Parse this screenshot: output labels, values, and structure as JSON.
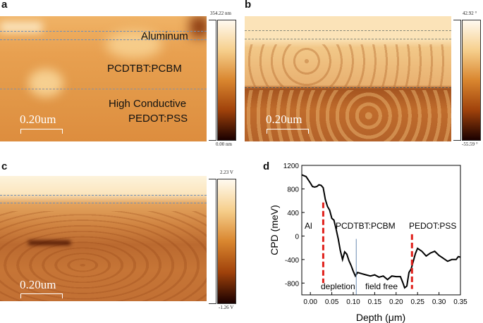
{
  "panels": {
    "a": {
      "label": "a",
      "colorbar_max": "354.22 nm",
      "colorbar_min": "0.00 nm",
      "scale_bar": "0.20um",
      "annotations": [
        "Aluminum",
        "PCDTBT:PCBM",
        "High Conductive",
        "PEDOT:PSS"
      ]
    },
    "b": {
      "label": "b",
      "colorbar_max": "42.92 °",
      "colorbar_min": "-55.59 °",
      "scale_bar": "0.20um"
    },
    "c": {
      "label": "c",
      "colorbar_max": "2.23 V",
      "colorbar_min": "-1.26 V",
      "scale_bar": "0.20um"
    },
    "d": {
      "label": "d"
    }
  },
  "colors": {
    "afm_light": "#fbe6bf",
    "afm_mid": "#d98a3a",
    "afm_dark": "#3a0a00",
    "dashed_guides": "#6f8fb8",
    "red_markers": "#e0201b",
    "blue_marker": "#6a8ab0"
  },
  "chart_data": {
    "type": "line",
    "xlabel": "Depth (μm)",
    "ylabel": "CPD (meV)",
    "xlim": [
      -0.02,
      0.35
    ],
    "ylim": [
      -1000,
      1200
    ],
    "xticks": [
      "0.00",
      "0.05",
      "0.10",
      "0.15",
      "0.20",
      "0.25",
      "0.30",
      "0.35"
    ],
    "yticks": [
      "-800",
      "-400",
      "0",
      "400",
      "800",
      "1200"
    ],
    "x": [
      -0.02,
      -0.01,
      0,
      0.005,
      0.01,
      0.015,
      0.02,
      0.025,
      0.03,
      0.035,
      0.04,
      0.045,
      0.05,
      0.055,
      0.06,
      0.065,
      0.07,
      0.075,
      0.08,
      0.085,
      0.09,
      0.095,
      0.1,
      0.105,
      0.11,
      0.12,
      0.13,
      0.14,
      0.15,
      0.16,
      0.17,
      0.18,
      0.19,
      0.2,
      0.21,
      0.215,
      0.22,
      0.225,
      0.23,
      0.235,
      0.24,
      0.245,
      0.25,
      0.26,
      0.27,
      0.28,
      0.29,
      0.3,
      0.31,
      0.32,
      0.33,
      0.34,
      0.345,
      0.35
    ],
    "y": [
      1040,
      1010,
      900,
      840,
      830,
      840,
      870,
      860,
      820,
      620,
      500,
      440,
      300,
      270,
      120,
      -50,
      -250,
      -400,
      -270,
      -310,
      -420,
      -500,
      -600,
      -680,
      -620,
      -640,
      -660,
      -680,
      -660,
      -700,
      -680,
      -740,
      -680,
      -690,
      -690,
      -780,
      -880,
      -850,
      -620,
      -560,
      -430,
      -300,
      -210,
      -260,
      -340,
      -290,
      -260,
      -330,
      -380,
      -430,
      -400,
      -400,
      -350,
      -360
    ],
    "markers": [
      {
        "type": "red-dashed",
        "x": 0.03,
        "y": [
          570,
          -800
        ]
      },
      {
        "type": "red-dashed",
        "x": 0.237,
        "y": [
          30,
          -900
        ]
      },
      {
        "type": "blue-solid",
        "x": 0.107,
        "y": [
          -50,
          -1000
        ]
      }
    ],
    "annotations": [
      "Al",
      "PCDTBT:PCBM",
      "PEDOT:PSS",
      "depletion",
      "field free"
    ]
  }
}
